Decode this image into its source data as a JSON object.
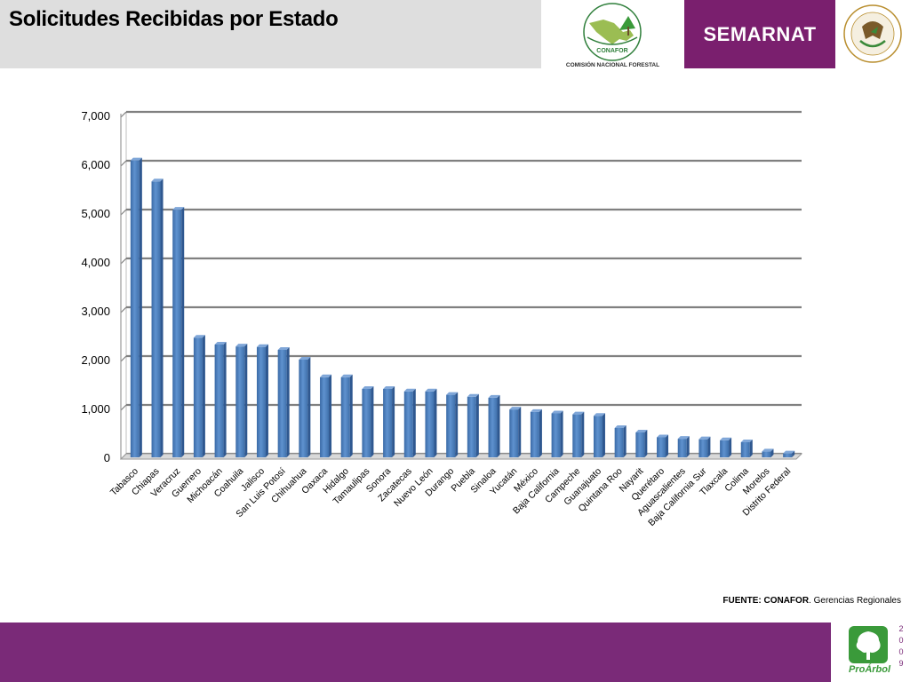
{
  "header": {
    "title": "Solicitudes Recibidas por Estado",
    "conafor_logo_text": "CONAFOR",
    "conafor_caption": "COMISIÓN NACIONAL FORESTAL",
    "semarnat_label": "SEMARNAT",
    "seal_text": "ESTADOS UNIDOS MEXICANOS"
  },
  "colors": {
    "header_bg": "#dedede",
    "semarnat_bg": "#7a1f6e",
    "footer_bg": "#7a2a78",
    "bar_fill": "#4f81bd",
    "gridline": "#808080",
    "proarbol_green": "#3a9a3a"
  },
  "chart_data": {
    "type": "bar",
    "style": "3d-column",
    "title": "",
    "xlabel": "",
    "ylabel": "",
    "ylim": [
      0,
      7000
    ],
    "yticks": [
      0,
      1000,
      2000,
      3000,
      4000,
      5000,
      6000,
      7000
    ],
    "ytick_labels": [
      "0",
      "1,000",
      "2,000",
      "3,000",
      "4,000",
      "5,000",
      "6,000",
      "7,000"
    ],
    "grid": true,
    "legend": "none",
    "categories": [
      "Tabasco",
      "Chiapas",
      "Veracruz",
      "Guerrero",
      "Michoacán",
      "Coahuila",
      "Jalisco",
      "San Luis Potosí",
      "Chihuahua",
      "Oaxaca",
      "Hidalgo",
      "Tamaulipas",
      "Sonora",
      "Zacatecas",
      "Nuevo León",
      "Durango",
      "Puebla",
      "Sinaloa",
      "Yucatán",
      "México",
      "Baja California",
      "Campeche",
      "Guanajuato",
      "Quintana Roo",
      "Nayarit",
      "Querétaro",
      "Aguascalientes",
      "Baja California  Sur",
      "Tlaxcala",
      "Colima",
      "Morelos",
      "Distrito Federal"
    ],
    "values": [
      6080,
      5650,
      5070,
      2450,
      2310,
      2270,
      2260,
      2200,
      2000,
      1640,
      1640,
      1400,
      1400,
      1350,
      1350,
      1280,
      1240,
      1220,
      980,
      930,
      900,
      880,
      850,
      600,
      510,
      410,
      380,
      370,
      350,
      310,
      120,
      80
    ]
  },
  "source": {
    "label": "FUENTE:",
    "org": "CONAFOR",
    "rest": ". Gerencias Regionales"
  },
  "footer": {
    "logo_label": "ProÁrbol",
    "year_digits": [
      "2",
      "0",
      "0",
      "9"
    ]
  }
}
